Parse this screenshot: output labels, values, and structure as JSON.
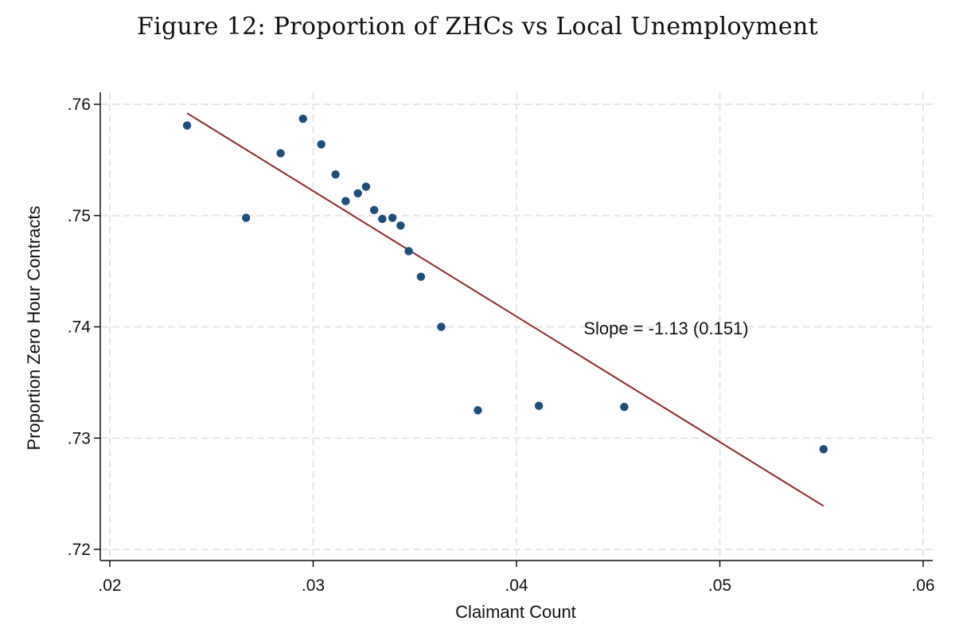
{
  "figure": {
    "title": "Figure 12: Proportion of ZHCs vs Local Unemployment"
  },
  "colors": {
    "points": "#1f4e79",
    "fit_line": "#8b2d2d",
    "grid": "#e6e6e6",
    "axis": "#111111"
  },
  "chart_data": {
    "type": "scatter",
    "title": "Figure 12: Proportion of ZHCs vs Local Unemployment",
    "xlabel": "Claimant Count",
    "ylabel": "Proportion Zero Hour Contracts",
    "xlim": [
      0.02,
      0.06
    ],
    "ylim": [
      0.72,
      0.76
    ],
    "xticks": [
      0.02,
      0.03,
      0.04,
      0.05,
      0.06
    ],
    "xtick_labels": [
      ".02",
      ".03",
      ".04",
      ".05",
      ".06"
    ],
    "yticks": [
      0.72,
      0.73,
      0.74,
      0.75,
      0.76
    ],
    "ytick_labels": [
      ".72",
      ".73",
      ".74",
      ".75",
      ".76"
    ],
    "grid": true,
    "legend": "none",
    "points": [
      {
        "x": 0.0238,
        "y": 0.7581
      },
      {
        "x": 0.0267,
        "y": 0.7498
      },
      {
        "x": 0.0284,
        "y": 0.7556
      },
      {
        "x": 0.0295,
        "y": 0.7587
      },
      {
        "x": 0.0304,
        "y": 0.7564
      },
      {
        "x": 0.0311,
        "y": 0.7537
      },
      {
        "x": 0.0316,
        "y": 0.7513
      },
      {
        "x": 0.0322,
        "y": 0.752
      },
      {
        "x": 0.0326,
        "y": 0.7526
      },
      {
        "x": 0.033,
        "y": 0.7505
      },
      {
        "x": 0.0334,
        "y": 0.7497
      },
      {
        "x": 0.0339,
        "y": 0.7498
      },
      {
        "x": 0.0343,
        "y": 0.7491
      },
      {
        "x": 0.0347,
        "y": 0.7468
      },
      {
        "x": 0.0353,
        "y": 0.7445
      },
      {
        "x": 0.0363,
        "y": 0.74
      },
      {
        "x": 0.0381,
        "y": 0.7325
      },
      {
        "x": 0.0411,
        "y": 0.7329
      },
      {
        "x": 0.0453,
        "y": 0.7328
      },
      {
        "x": 0.0551,
        "y": 0.729
      }
    ],
    "fit_line": {
      "x": [
        0.0238,
        0.0551
      ],
      "y": [
        0.7592,
        0.7239
      ]
    },
    "annotations": [
      {
        "text": "Slope = -1.13 (0.151)",
        "x": 0.0433,
        "y": 0.7399
      }
    ]
  }
}
